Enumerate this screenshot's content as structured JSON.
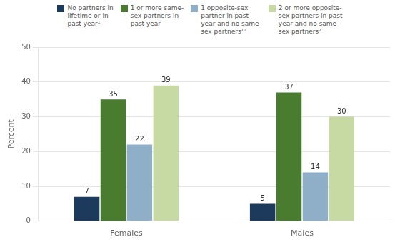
{
  "chart_data": {
    "type": "bar",
    "categories": [
      "Females",
      "Males"
    ],
    "series": [
      {
        "name": "No partners in\nlifetime or in\npast year¹",
        "color": "#1b3a5c",
        "values": [
          7,
          5
        ]
      },
      {
        "name": "1 or more same-\nsex partners in\npast year",
        "color": "#4a7c2f",
        "values": [
          35,
          37
        ]
      },
      {
        "name": "1 opposite-sex\npartner in past\nyear and no same-\nsex partners¹²",
        "color": "#8fafc8",
        "values": [
          22,
          14
        ]
      },
      {
        "name": "2 or more opposite-\nsex partners in past\nyear and no same-\nsex partners²",
        "color": "#c8daa4",
        "values": [
          39,
          30
        ]
      }
    ],
    "ylabel": "Percent",
    "ylim": [
      0,
      50
    ],
    "yticks": [
      0,
      10,
      20,
      30,
      40,
      50
    ],
    "grid": true,
    "legend": "top",
    "data_labels": true
  }
}
